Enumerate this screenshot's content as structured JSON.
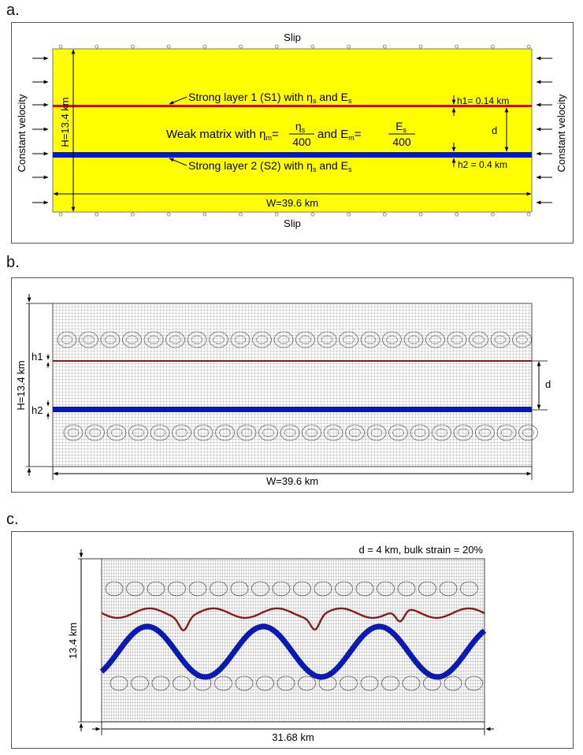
{
  "panel_a": {
    "label": "a.",
    "slip_top": "Slip",
    "slip_bottom": "Slip",
    "side_left": "Constant velocity",
    "side_right": "Constant velocity",
    "height": "H=13.4 km",
    "width": "W=39.6 km",
    "layer1": {
      "text": "Strong layer 1 (S1) with ",
      "eta": "η",
      "sub1": "s",
      "and": " and E",
      "sub2": "s"
    },
    "layer2": {
      "text": "Strong layer 2 (S2) with ",
      "eta": "η",
      "sub1": "s",
      "and": " and E",
      "sub2": "s"
    },
    "matrix": {
      "text": "Weak matrix with η",
      "sub_m": "m",
      "eq": "=",
      "eta_s": "η",
      "s": "s",
      "den": "400",
      "and": " and E",
      "e_s": "E",
      "e_sub": "s"
    },
    "h1": "h1= 0.14 km",
    "h2": "h2 = 0.4 km",
    "d": "d",
    "colors": {
      "matrix": "#ffff00",
      "layer1": "#e00000",
      "layer2": "#0019d8"
    }
  },
  "panel_b": {
    "label": "b.",
    "height": "H=13.4 km",
    "width": "W=39.6 km",
    "h1": "h1",
    "h2": "h2",
    "d": "d",
    "colors": {
      "layer1": "#8b1a1a",
      "layer2": "#0a1ab0",
      "mesh": "#555555"
    }
  },
  "panel_c": {
    "label": "c.",
    "caption": "d = 4 km, bulk strain = 20%",
    "height": "13.4 km",
    "width": "31.68 km",
    "colors": {
      "layer1": "#8b1a1a",
      "layer2": "#0a1ab0",
      "mesh": "#555555"
    }
  }
}
